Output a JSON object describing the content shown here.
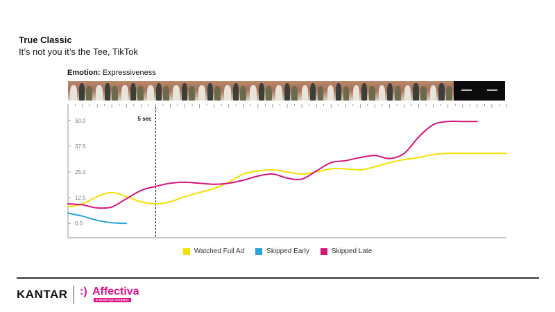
{
  "header": {
    "title": "True Classic",
    "subtitle": "It’s not you it’s the Tee, TikTok"
  },
  "emotion": {
    "label": "Emotion:",
    "value": "Expressiveness"
  },
  "chart_data": {
    "type": "line",
    "title": "",
    "xlabel": "",
    "ylabel": "",
    "xlim": [
      0,
      30
    ],
    "ylim": [
      -7,
      58
    ],
    "yticks": [
      0.0,
      12.5,
      25.0,
      37.5,
      50.0
    ],
    "ytick_labels": [
      "0.0",
      "12.5",
      "25.0",
      "37.5",
      "50.0"
    ],
    "grid": false,
    "legend_position": "bottom",
    "marker": {
      "x": 6,
      "label": "5 sec"
    },
    "series": [
      {
        "name": "Watched Full Ad",
        "color": "#f5e000",
        "x": [
          0,
          1,
          2,
          3,
          4,
          5,
          6,
          7,
          8,
          9,
          10,
          11,
          12,
          13,
          14,
          15,
          16,
          17,
          18,
          19,
          20,
          21,
          22,
          23,
          24,
          25,
          26,
          27,
          28,
          29,
          30
        ],
        "y": [
          8,
          9.5,
          13,
          15,
          13,
          10.5,
          9.5,
          10.5,
          13,
          15,
          17,
          20,
          24,
          25.5,
          26,
          25,
          24,
          25,
          26.5,
          26.5,
          26,
          27.5,
          29.5,
          31,
          32,
          33.5,
          34,
          34,
          34,
          34,
          34
        ]
      },
      {
        "name": "Skipped Early",
        "color": "#27a4e0",
        "x": [
          0,
          1,
          2,
          3,
          4
        ],
        "y": [
          5,
          3.5,
          1.5,
          0.3,
          0
        ]
      },
      {
        "name": "Skipped Late",
        "color": "#d4157a",
        "x": [
          0,
          1,
          2,
          3,
          4,
          5,
          6,
          7,
          8,
          9,
          10,
          11,
          12,
          13,
          14,
          15,
          16,
          17,
          18,
          19,
          20,
          21,
          22,
          23,
          24,
          25,
          26,
          27,
          28
        ],
        "y": [
          9.5,
          9,
          7.5,
          8,
          12,
          16,
          18,
          19.5,
          20,
          19.5,
          19,
          19.5,
          21,
          23,
          24,
          22,
          21.5,
          25.5,
          29.5,
          30.5,
          32,
          33,
          31.5,
          34,
          42,
          48,
          49.5,
          49.5,
          49.5
        ]
      }
    ]
  }
}
